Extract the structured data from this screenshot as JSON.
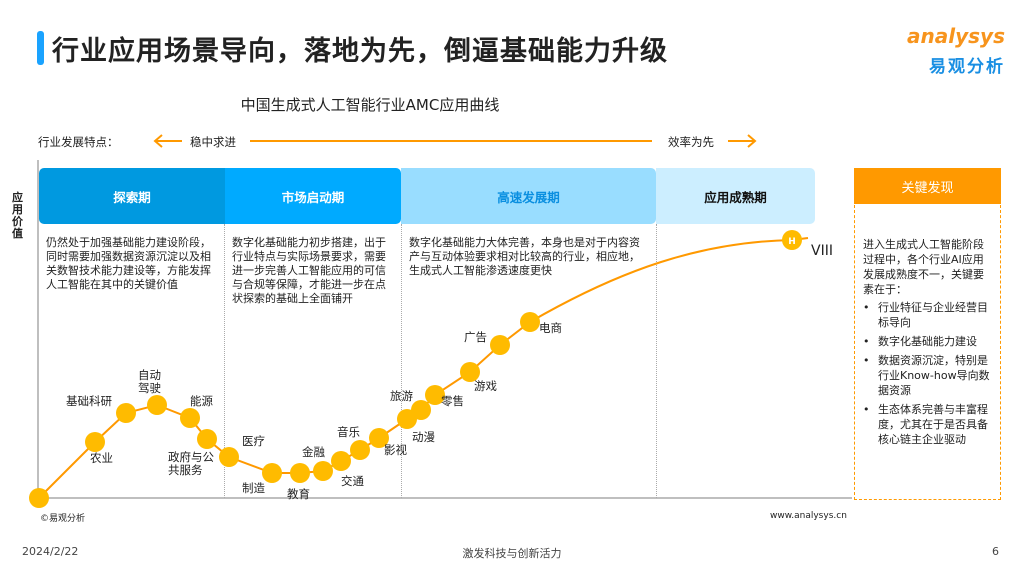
{
  "header": {
    "title": "行业应用场景导向，落地为先，倒逼基础能力升级",
    "logo_en": "analysys",
    "logo_cn": "易观分析"
  },
  "chart": {
    "title": "中国生成式人工智能行业AMC应用曲线",
    "feature_label": "行业发展特点：",
    "left_trend": "稳中求进",
    "right_trend": "效率为先",
    "y_axis_label": "应用价值",
    "stages": [
      {
        "name": "探索期",
        "color": "#0099e0",
        "text_color": "#ffffff",
        "desc": "仍然处于加强基础能力建设阶段，同时需要加强数据资源沉淀以及相关数智技术能力建设等，方能发挥人工智能在其中的关键价值"
      },
      {
        "name": "市场启动期",
        "color": "#00aaff",
        "text_color": "#ffffff",
        "desc": "数字化基础能力初步搭建，出于行业特点与实际场景要求，需要进一步完善人工智能应用的可信与合规等保障，才能进一步在点状探索的基础上全面铺开"
      },
      {
        "name": "高速发展期",
        "color": "#99ddff",
        "text_color": "#0a8fe0",
        "desc": "数字化基础能力大体完善，本身也是对于内容资产与互动体验要求相对比较高的行业，相应地，生成式人工智能渗透速度更快"
      },
      {
        "name": "应用成熟期",
        "color": "#cceeff",
        "text_color": "#111111",
        "desc": ""
      }
    ],
    "industries": [
      "农业",
      "基础科研",
      "自动驾驶",
      "能源",
      "政府与公共服务",
      "医疗",
      "制造",
      "教育",
      "金融",
      "交通",
      "音乐",
      "影视",
      "动漫",
      "旅游",
      "零售",
      "游戏",
      "广告",
      "电商"
    ],
    "end_marker": "H",
    "end_label": "VIII",
    "curve_color": "#ff9900",
    "dot_color": "#ffbb00"
  },
  "key_findings": {
    "title": "关键发现",
    "intro": "进入生成式人工智能阶段过程中，各个行业AI应用发展成熟度不一，关键要素在于：",
    "items": [
      "行业特征与企业经营目标导向",
      "数字化基础能力建设",
      "数据资源沉淀，特别是行业Know-how导向数据资源",
      "生态体系完善与丰富程度，尤其在于是否具备核心链主企业驱动"
    ]
  },
  "footer": {
    "source": "©易观分析",
    "site": "www.analysys.cn",
    "date": "2024/2/22",
    "slogan": "激发科技与创新活力",
    "page": "6"
  }
}
